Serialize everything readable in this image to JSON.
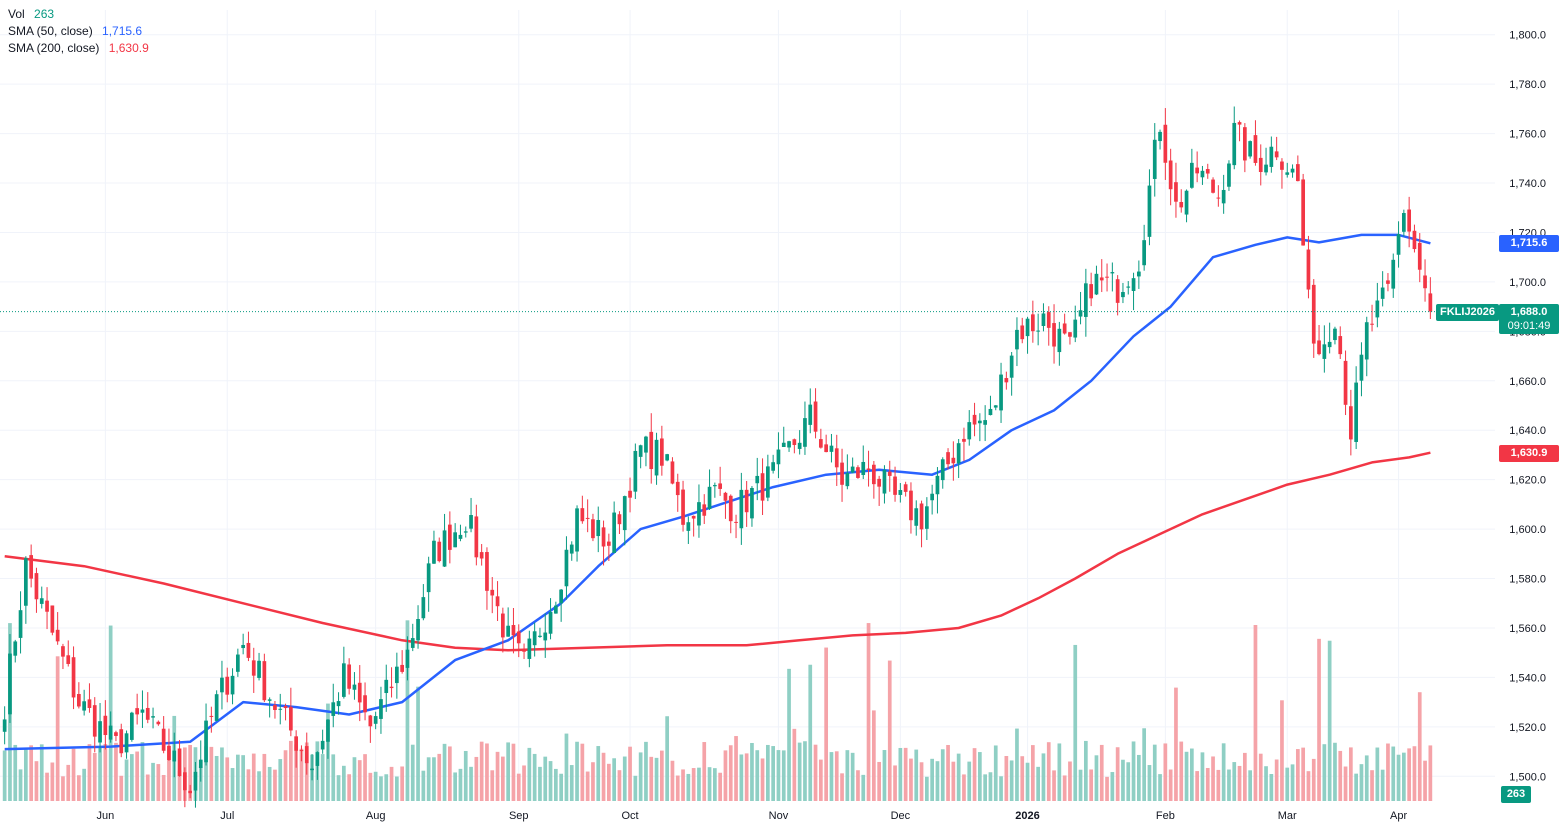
{
  "legend": {
    "vol_label": "Vol",
    "vol_value": "263",
    "sma50_label": "SMA (50, close)",
    "sma50_value": "1,715.6",
    "sma200_label": "SMA (200, close)",
    "sma200_value": "1,630.9"
  },
  "badges": {
    "sma50": "1,715.6",
    "sma200": "1,630.9",
    "symbol": "FKLIJ2026",
    "last_price": "1,688.0",
    "countdown": "09:01:49",
    "volume": "263"
  },
  "colors": {
    "up": "#089981",
    "down": "#f23645",
    "up_vol": "#8fcfc4",
    "down_vol": "#f5a3a8",
    "sma50": "#2962ff",
    "sma200": "#f23645",
    "grid": "#f0f3fa",
    "text": "#131722"
  },
  "chart_data": {
    "type": "candlestick",
    "symbol": "FKLIJ2026",
    "price_axis": {
      "min": 1490,
      "max": 1810,
      "ticks": [
        1500,
        1520,
        1540,
        1560,
        1580,
        1600,
        1620,
        1640,
        1660,
        1680,
        1700,
        1720,
        1740,
        1760,
        1780,
        1800
      ],
      "tick_labels": [
        "1,500.0",
        "1,520.0",
        "1,540.0",
        "1,560.0",
        "1,580.0",
        "1,600.0",
        "1,620.0",
        "1,640.0",
        "1,660.0",
        "1,680.0",
        "1,700.0",
        "1,720.0",
        "1,740.0",
        "1,760.0",
        "1,780.0",
        "1,800.0"
      ]
    },
    "time_axis": {
      "labels": [
        "Jun",
        "Jul",
        "Aug",
        "Sep",
        "Oct",
        "Nov",
        "Dec",
        "2026",
        "Feb",
        "Mar",
        "Apr"
      ],
      "label_bar_index": [
        19,
        42,
        70,
        97,
        118,
        146,
        169,
        193,
        219,
        242,
        263
      ]
    },
    "bar_count": 270,
    "volume_max": 5000,
    "last_price": 1688.0,
    "key_points": [
      {
        "bar": 0,
        "close": 1530
      },
      {
        "bar": 4,
        "close": 1585
      },
      {
        "bar": 14,
        "close": 1530
      },
      {
        "bar": 21,
        "close": 1512
      },
      {
        "bar": 26,
        "close": 1525
      },
      {
        "bar": 35,
        "close": 1496
      },
      {
        "bar": 40,
        "close": 1530
      },
      {
        "bar": 45,
        "close": 1553
      },
      {
        "bar": 52,
        "close": 1525
      },
      {
        "bar": 58,
        "close": 1505
      },
      {
        "bar": 64,
        "close": 1540
      },
      {
        "bar": 69,
        "close": 1520
      },
      {
        "bar": 76,
        "close": 1550
      },
      {
        "bar": 81,
        "close": 1590
      },
      {
        "bar": 87,
        "close": 1605
      },
      {
        "bar": 91,
        "close": 1580
      },
      {
        "bar": 95,
        "close": 1555
      },
      {
        "bar": 98,
        "close": 1545
      },
      {
        "bar": 104,
        "close": 1575
      },
      {
        "bar": 108,
        "close": 1605
      },
      {
        "bar": 114,
        "close": 1595
      },
      {
        "bar": 120,
        "close": 1632
      },
      {
        "bar": 124,
        "close": 1630
      },
      {
        "bar": 128,
        "close": 1605
      },
      {
        "bar": 134,
        "close": 1615
      },
      {
        "bar": 138,
        "close": 1608
      },
      {
        "bar": 145,
        "close": 1622
      },
      {
        "bar": 152,
        "close": 1645
      },
      {
        "bar": 158,
        "close": 1620
      },
      {
        "bar": 163,
        "close": 1625
      },
      {
        "bar": 168,
        "close": 1612
      },
      {
        "bar": 173,
        "close": 1605
      },
      {
        "bar": 177,
        "close": 1622
      },
      {
        "bar": 181,
        "close": 1640
      },
      {
        "bar": 186,
        "close": 1645
      },
      {
        "bar": 191,
        "close": 1680
      },
      {
        "bar": 196,
        "close": 1685
      },
      {
        "bar": 201,
        "close": 1672
      },
      {
        "bar": 205,
        "close": 1700
      },
      {
        "bar": 210,
        "close": 1698
      },
      {
        "bar": 214,
        "close": 1710
      },
      {
        "bar": 218,
        "close": 1765
      },
      {
        "bar": 221,
        "close": 1730
      },
      {
        "bar": 225,
        "close": 1745
      },
      {
        "bar": 229,
        "close": 1735
      },
      {
        "bar": 232,
        "close": 1760
      },
      {
        "bar": 236,
        "close": 1748
      },
      {
        "bar": 240,
        "close": 1755
      },
      {
        "bar": 244,
        "close": 1740
      },
      {
        "bar": 246,
        "close": 1690
      },
      {
        "bar": 248,
        "close": 1672
      },
      {
        "bar": 251,
        "close": 1688
      },
      {
        "bar": 254,
        "close": 1640
      },
      {
        "bar": 257,
        "close": 1680
      },
      {
        "bar": 261,
        "close": 1695
      },
      {
        "bar": 264,
        "close": 1730
      },
      {
        "bar": 267,
        "close": 1705
      },
      {
        "bar": 269,
        "close": 1688
      }
    ],
    "sma50": {
      "label": "SMA (50, close)",
      "last_value": 1715.6,
      "points": [
        [
          0,
          1511
        ],
        [
          20,
          1512
        ],
        [
          35,
          1514
        ],
        [
          45,
          1530
        ],
        [
          55,
          1528
        ],
        [
          65,
          1525
        ],
        [
          75,
          1530
        ],
        [
          85,
          1547
        ],
        [
          95,
          1555
        ],
        [
          105,
          1570
        ],
        [
          112,
          1585
        ],
        [
          120,
          1600
        ],
        [
          128,
          1605
        ],
        [
          135,
          1610
        ],
        [
          145,
          1617
        ],
        [
          155,
          1622
        ],
        [
          165,
          1624
        ],
        [
          175,
          1622
        ],
        [
          182,
          1628
        ],
        [
          190,
          1640
        ],
        [
          198,
          1648
        ],
        [
          205,
          1660
        ],
        [
          213,
          1678
        ],
        [
          220,
          1690
        ],
        [
          228,
          1710
        ],
        [
          236,
          1715
        ],
        [
          242,
          1718
        ],
        [
          248,
          1716
        ],
        [
          256,
          1719
        ],
        [
          263,
          1719
        ],
        [
          269,
          1715.6
        ]
      ]
    },
    "sma200": {
      "label": "SMA (200, close)",
      "last_value": 1630.9,
      "points": [
        [
          0,
          1589
        ],
        [
          15,
          1585
        ],
        [
          30,
          1578
        ],
        [
          45,
          1570
        ],
        [
          60,
          1562
        ],
        [
          75,
          1555
        ],
        [
          85,
          1552
        ],
        [
          95,
          1551
        ],
        [
          110,
          1552
        ],
        [
          125,
          1553
        ],
        [
          140,
          1553
        ],
        [
          150,
          1555
        ],
        [
          160,
          1557
        ],
        [
          170,
          1558
        ],
        [
          180,
          1560
        ],
        [
          188,
          1565
        ],
        [
          195,
          1572
        ],
        [
          202,
          1580
        ],
        [
          210,
          1590
        ],
        [
          218,
          1598
        ],
        [
          226,
          1606
        ],
        [
          234,
          1612
        ],
        [
          242,
          1618
        ],
        [
          250,
          1622
        ],
        [
          258,
          1627
        ],
        [
          265,
          1629
        ],
        [
          269,
          1630.9
        ]
      ]
    }
  }
}
